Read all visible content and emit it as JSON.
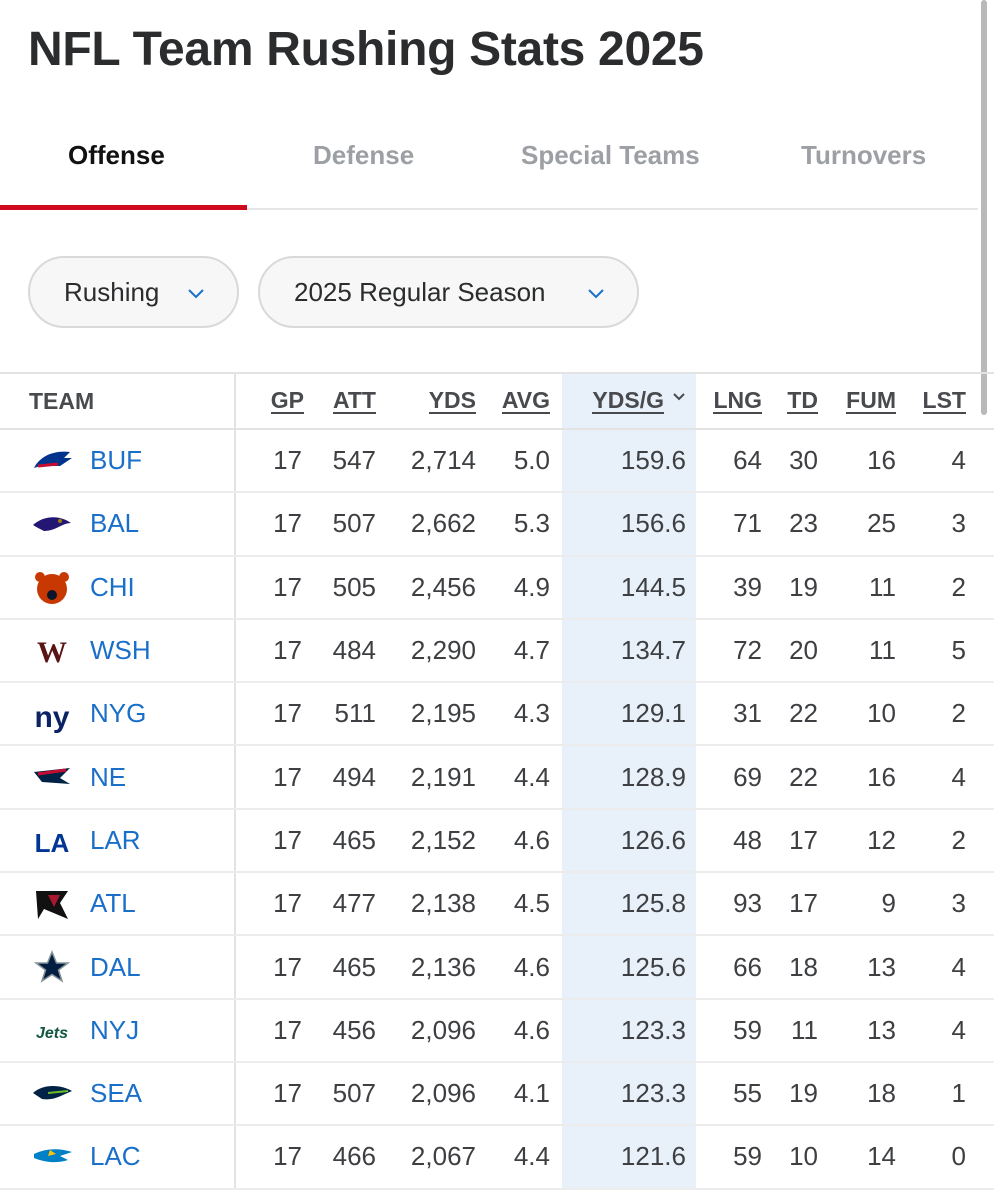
{
  "page": {
    "title": "NFL Team Rushing Stats 2025"
  },
  "tabs": [
    {
      "label": "Offense",
      "active": true
    },
    {
      "label": "Defense",
      "active": false
    },
    {
      "label": "Special Teams",
      "active": false
    },
    {
      "label": "Turnovers",
      "active": false
    }
  ],
  "filters": {
    "category": {
      "selected": "Rushing",
      "icon": "chevron-down-icon"
    },
    "season": {
      "selected": "2025 Regular Season",
      "icon": "chevron-down-icon"
    }
  },
  "table": {
    "columns": [
      "TEAM",
      "GP",
      "ATT",
      "YDS",
      "AVG",
      "YDS/G",
      "LNG",
      "TD",
      "FUM",
      "LST"
    ],
    "sorted_column": "YDS/G",
    "rows": [
      {
        "team": "BUF",
        "logo": "bills-logo",
        "color": "#00338d",
        "gp": "17",
        "att": "547",
        "yds": "2,714",
        "avg": "5.0",
        "ydsg": "159.6",
        "lng": "64",
        "td": "30",
        "fum": "16",
        "lst": "4"
      },
      {
        "team": "BAL",
        "logo": "ravens-logo",
        "color": "#241773",
        "gp": "17",
        "att": "507",
        "yds": "2,662",
        "avg": "5.3",
        "ydsg": "156.6",
        "lng": "71",
        "td": "23",
        "fum": "25",
        "lst": "3"
      },
      {
        "team": "CHI",
        "logo": "bears-logo",
        "color": "#c83803",
        "gp": "17",
        "att": "505",
        "yds": "2,456",
        "avg": "4.9",
        "ydsg": "144.5",
        "lng": "39",
        "td": "19",
        "fum": "11",
        "lst": "2"
      },
      {
        "team": "WSH",
        "logo": "commanders-logo",
        "color": "#5a1414",
        "gp": "17",
        "att": "484",
        "yds": "2,290",
        "avg": "4.7",
        "ydsg": "134.7",
        "lng": "72",
        "td": "20",
        "fum": "11",
        "lst": "5"
      },
      {
        "team": "NYG",
        "logo": "giants-logo",
        "color": "#0b2265",
        "gp": "17",
        "att": "511",
        "yds": "2,195",
        "avg": "4.3",
        "ydsg": "129.1",
        "lng": "31",
        "td": "22",
        "fum": "10",
        "lst": "2"
      },
      {
        "team": "NE",
        "logo": "patriots-logo",
        "color": "#002244",
        "gp": "17",
        "att": "494",
        "yds": "2,191",
        "avg": "4.4",
        "ydsg": "128.9",
        "lng": "69",
        "td": "22",
        "fum": "16",
        "lst": "4"
      },
      {
        "team": "LAR",
        "logo": "rams-logo",
        "color": "#003594",
        "gp": "17",
        "att": "465",
        "yds": "2,152",
        "avg": "4.6",
        "ydsg": "126.6",
        "lng": "48",
        "td": "17",
        "fum": "12",
        "lst": "2"
      },
      {
        "team": "ATL",
        "logo": "falcons-logo",
        "color": "#a71930",
        "gp": "17",
        "att": "477",
        "yds": "2,138",
        "avg": "4.5",
        "ydsg": "125.8",
        "lng": "93",
        "td": "17",
        "fum": "9",
        "lst": "3"
      },
      {
        "team": "DAL",
        "logo": "cowboys-logo",
        "color": "#041e42",
        "gp": "17",
        "att": "465",
        "yds": "2,136",
        "avg": "4.6",
        "ydsg": "125.6",
        "lng": "66",
        "td": "18",
        "fum": "13",
        "lst": "4"
      },
      {
        "team": "NYJ",
        "logo": "jets-logo",
        "color": "#125740",
        "gp": "17",
        "att": "456",
        "yds": "2,096",
        "avg": "4.6",
        "ydsg": "123.3",
        "lng": "59",
        "td": "11",
        "fum": "13",
        "lst": "4"
      },
      {
        "team": "SEA",
        "logo": "seahawks-logo",
        "color": "#002244",
        "gp": "17",
        "att": "507",
        "yds": "2,096",
        "avg": "4.1",
        "ydsg": "123.3",
        "lng": "55",
        "td": "19",
        "fum": "18",
        "lst": "1"
      },
      {
        "team": "LAC",
        "logo": "chargers-logo",
        "color": "#0080c6",
        "gp": "17",
        "att": "466",
        "yds": "2,067",
        "avg": "4.4",
        "ydsg": "121.6",
        "lng": "59",
        "td": "10",
        "fum": "14",
        "lst": "0"
      }
    ]
  },
  "colors": {
    "accent": "#d00a1e",
    "link": "#1a6fc9",
    "sorted_bg": "#e8f0fa"
  }
}
